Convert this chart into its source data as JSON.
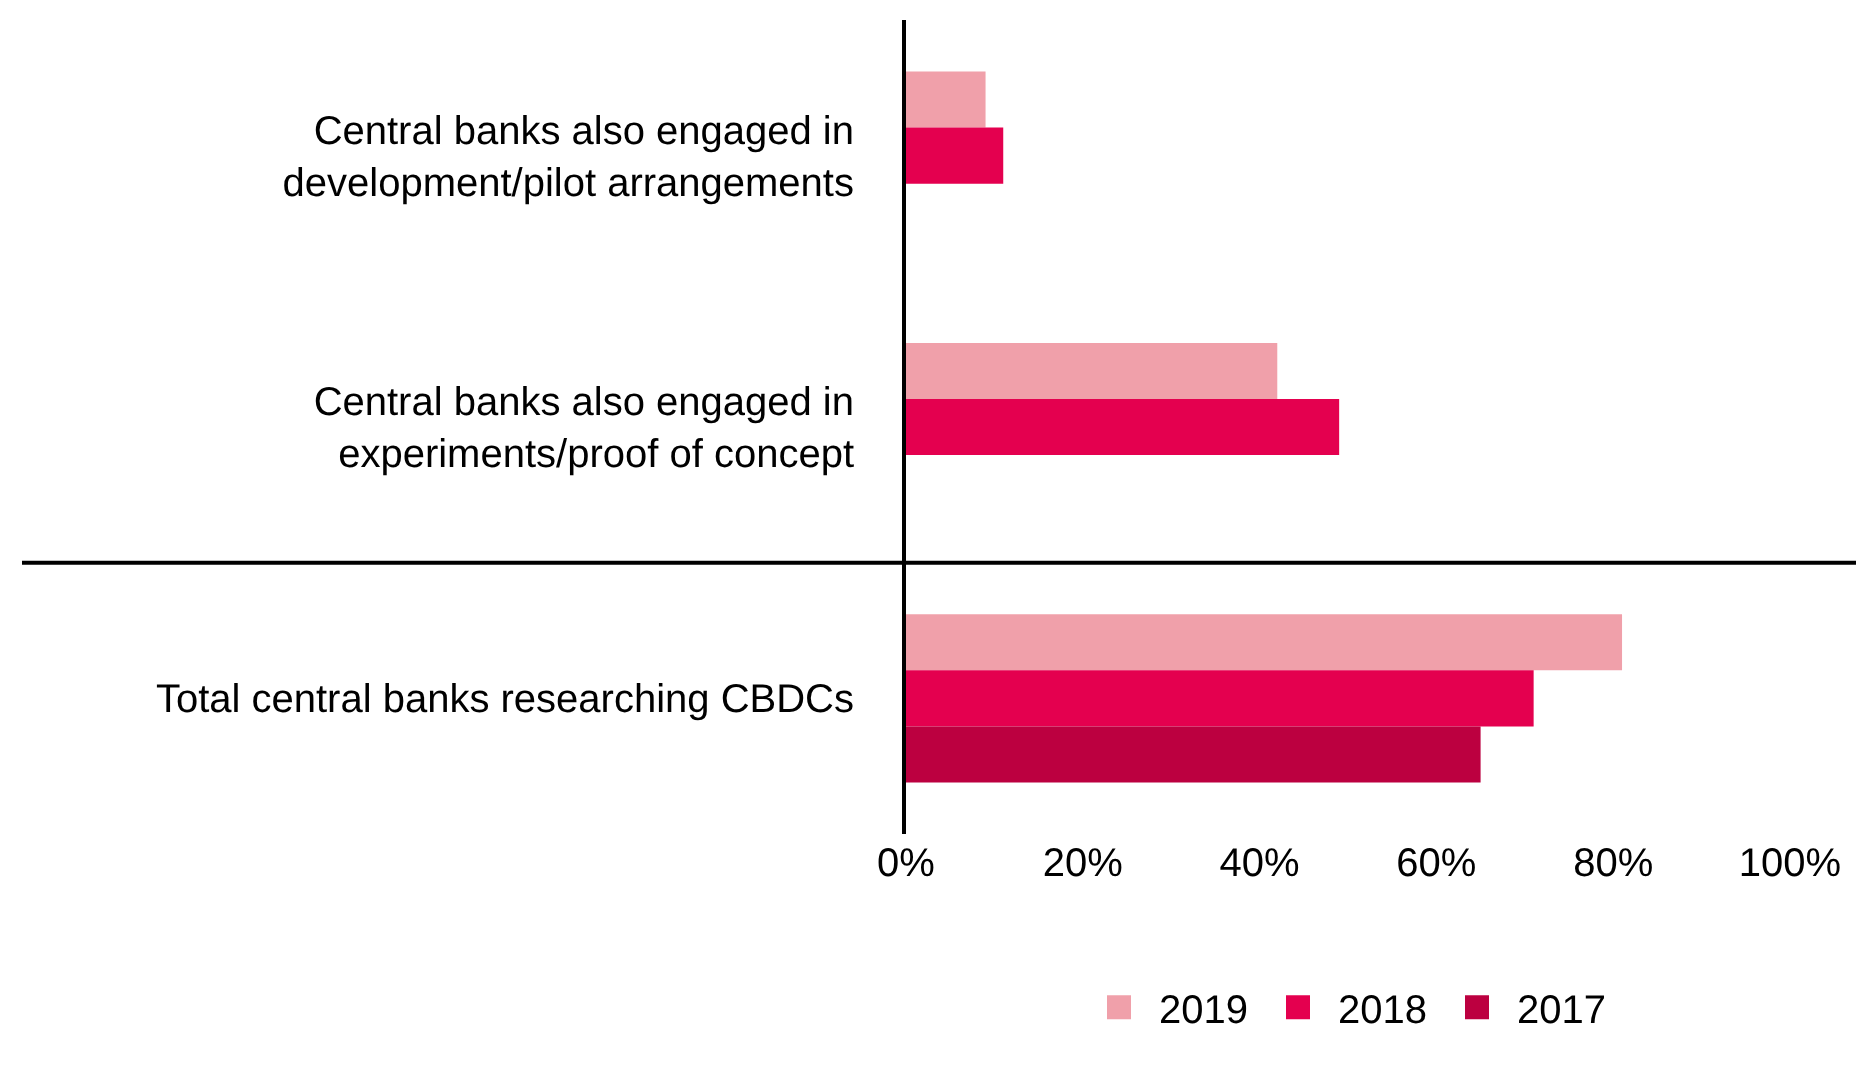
{
  "chart_data": {
    "type": "bar",
    "orientation": "horizontal",
    "categories": [
      "Central banks also engaged in\ndevelopment/pilot arrangements",
      "Central banks also engaged in\nexperiments/proof of concept",
      "Total central banks researching CBDCs"
    ],
    "series": [
      {
        "name": "2019",
        "color": "#f0a0aa",
        "values": [
          9,
          42,
          81
        ]
      },
      {
        "name": "2018",
        "color": "#e4004f",
        "values": [
          11,
          49,
          71
        ]
      },
      {
        "name": "2017",
        "color": "#bc0040",
        "values": [
          null,
          null,
          65
        ]
      }
    ],
    "xlim": [
      0,
      100
    ],
    "xticks": [
      {
        "value": 0,
        "label": "0%"
      },
      {
        "value": 20,
        "label": "20%"
      },
      {
        "value": 40,
        "label": "40%"
      },
      {
        "value": 60,
        "label": "60%"
      },
      {
        "value": 80,
        "label": "80%"
      },
      {
        "value": 100,
        "label": "100%"
      }
    ],
    "grid": false,
    "legend": "bottom"
  }
}
